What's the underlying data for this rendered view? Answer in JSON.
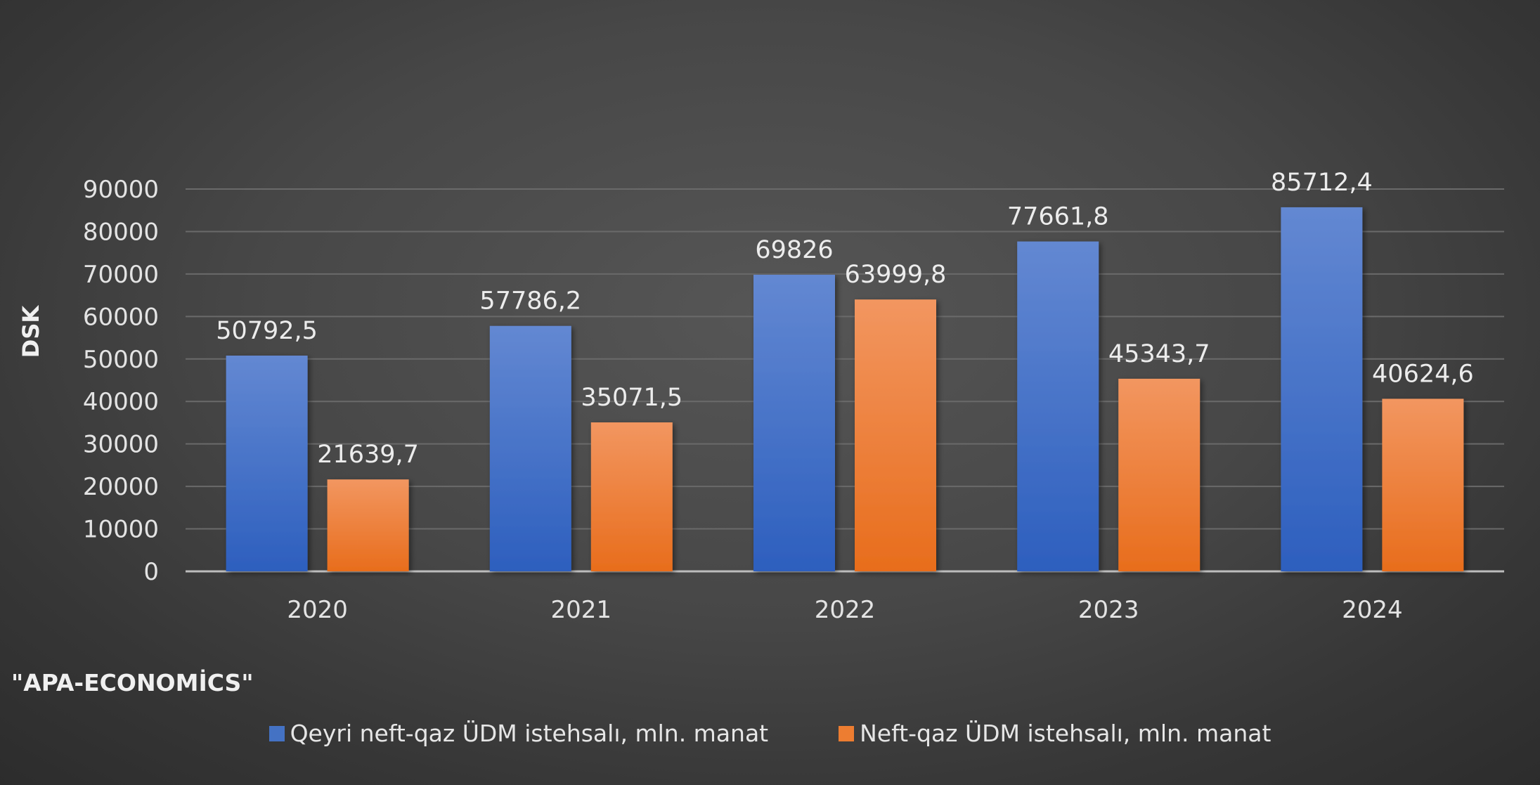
{
  "chart_data": {
    "type": "bar",
    "title": "",
    "xlabel": "",
    "ylabel": "DSK",
    "categories": [
      "2020",
      "2021",
      "2022",
      "2023",
      "2024"
    ],
    "ylim": [
      0,
      90000
    ],
    "yticks": [
      0,
      10000,
      20000,
      30000,
      40000,
      50000,
      60000,
      70000,
      80000,
      90000
    ],
    "grid": true,
    "legend_position": "bottom",
    "series": [
      {
        "name": "Qeyri neft-qaz ÜDM istehsalı, mln. manat",
        "color": "#4472c4",
        "values": [
          50792.5,
          57786.2,
          69826,
          77661.8,
          85712.4
        ],
        "labels": [
          "50792,5",
          "57786,2",
          "69826",
          "77661,8",
          "85712,4"
        ]
      },
      {
        "name": "Neft-qaz ÜDM istehsalı, mln. manat",
        "color": "#ed7d31",
        "values": [
          21639.7,
          35071.5,
          63999.8,
          45343.7,
          40624.6
        ],
        "labels": [
          "21639,7",
          "35071,5",
          "63999,8",
          "45343,7",
          "40624,6"
        ]
      }
    ],
    "annotation": "\"APA-ECONOMİCS\""
  }
}
